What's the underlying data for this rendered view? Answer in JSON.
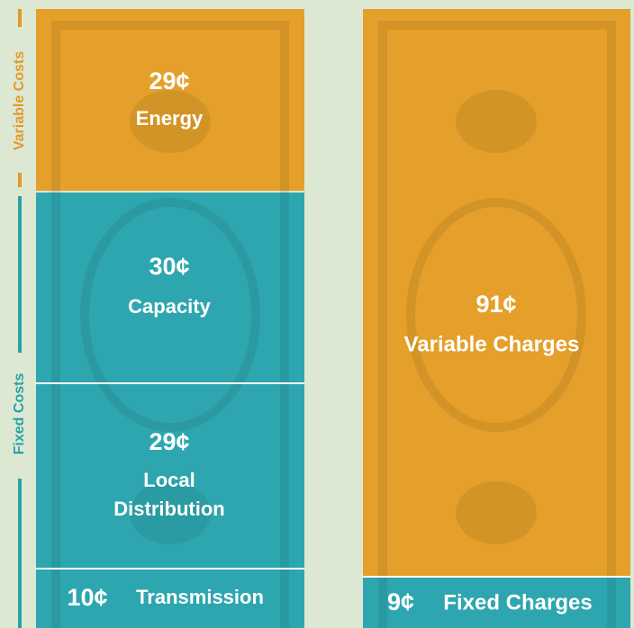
{
  "side_labels": {
    "variable": "Variable Costs",
    "fixed": "Fixed Costs"
  },
  "left_bill": {
    "segments": [
      {
        "value": "29¢",
        "label": [
          "Energy"
        ]
      },
      {
        "value": "30¢",
        "label": [
          "Capacity"
        ]
      },
      {
        "value": "29¢",
        "label": [
          "Local",
          "Distribution"
        ]
      },
      {
        "value": "10¢",
        "label": [
          "Transmission"
        ]
      }
    ]
  },
  "right_bill": {
    "segments": [
      {
        "value": "91¢",
        "label": [
          "Variable Charges"
        ]
      },
      {
        "value": "9¢",
        "label": [
          "Fixed Charges"
        ]
      }
    ]
  }
}
